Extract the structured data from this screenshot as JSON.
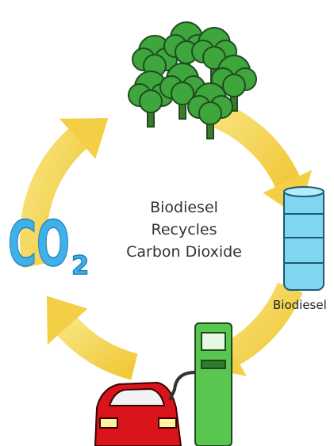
{
  "center_text": [
    "Biodiesel",
    "Recycles",
    "Carbon Dioxide"
  ],
  "co2": {
    "main": "CO",
    "sub": "2"
  },
  "barrel_label": "Biodiesel"
}
